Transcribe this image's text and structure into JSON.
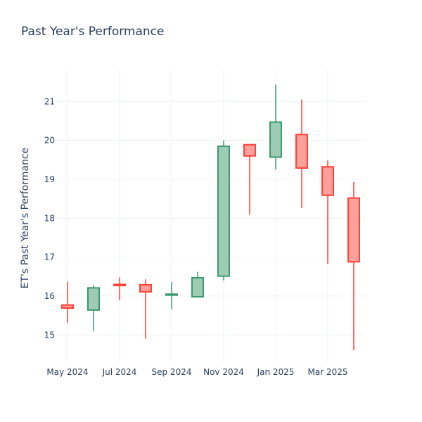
{
  "chart_data": {
    "type": "candlestick",
    "title": "Past Year's Performance",
    "ylabel": "ET's Past Year's Performance",
    "xlabel": "",
    "ylim": [
      14.3,
      21.8
    ],
    "yticks": [
      15,
      16,
      17,
      18,
      19,
      20,
      21
    ],
    "xticks": [
      "May 2024",
      "Jul 2024",
      "Sep 2024",
      "Nov 2024",
      "Jan 2025",
      "Mar 2025"
    ],
    "increasing_color": "#3d9970",
    "increasing_fill": "#9ecbb3",
    "decreasing_color": "#ff4136",
    "decreasing_fill": "#ff9f9a",
    "grid": true,
    "candles": [
      {
        "period": "May 2024",
        "open": 15.77,
        "high": 16.37,
        "low": 15.31,
        "close": 15.69
      },
      {
        "period": "Jun 2024",
        "open": 15.64,
        "high": 16.28,
        "low": 15.1,
        "close": 16.21
      },
      {
        "period": "Jul 2024",
        "open": 16.3,
        "high": 16.48,
        "low": 15.89,
        "close": 16.27
      },
      {
        "period": "Aug 2024",
        "open": 16.29,
        "high": 16.43,
        "low": 14.9,
        "close": 16.11
      },
      {
        "period": "Sep 2024",
        "open": 16.04,
        "high": 16.36,
        "low": 15.66,
        "close": 16.05
      },
      {
        "period": "Oct 2024",
        "open": 15.98,
        "high": 16.62,
        "low": 15.97,
        "close": 16.47
      },
      {
        "period": "Nov 2024",
        "open": 16.51,
        "high": 20.0,
        "low": 16.4,
        "close": 19.85
      },
      {
        "period": "Dec 2024",
        "open": 19.89,
        "high": 19.89,
        "low": 18.09,
        "close": 19.6
      },
      {
        "period": "Jan 2025",
        "open": 19.57,
        "high": 21.43,
        "low": 19.25,
        "close": 20.47
      },
      {
        "period": "Feb 2025",
        "open": 20.15,
        "high": 21.05,
        "low": 18.26,
        "close": 19.29
      },
      {
        "period": "Mar 2025",
        "open": 19.32,
        "high": 19.49,
        "low": 16.83,
        "close": 18.59
      },
      {
        "period": "Apr 2025",
        "open": 18.52,
        "high": 18.93,
        "low": 14.61,
        "close": 16.88
      }
    ]
  }
}
